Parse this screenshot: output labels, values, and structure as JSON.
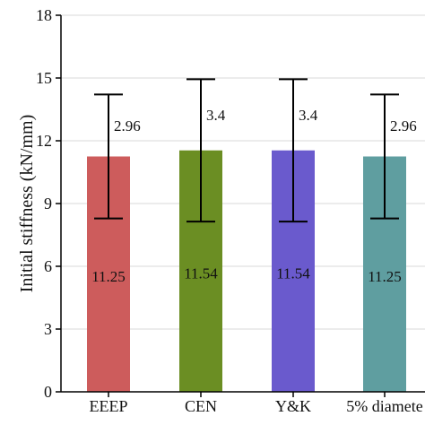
{
  "chart_data": {
    "type": "bar",
    "title": "",
    "xlabel": "",
    "ylabel": "Initial stiffness (kN/mm)",
    "ylim": [
      0,
      18
    ],
    "yticks": [
      0,
      3,
      6,
      9,
      12,
      15,
      18
    ],
    "grid": "horizontal",
    "categories": [
      "EEEP",
      "CEN",
      "Y&K",
      "5% diamete"
    ],
    "values": [
      11.25,
      11.54,
      11.54,
      11.25
    ],
    "value_labels": [
      "11.25",
      "11.54",
      "11.54",
      "11.25"
    ],
    "errors": [
      2.96,
      3.4,
      3.4,
      2.96
    ],
    "error_labels": [
      "2.96",
      "3.4",
      "3.4",
      "2.96"
    ],
    "colors": [
      "#cd5c5c",
      "#6b8e23",
      "#6a5acd",
      "#5f9ea0"
    ]
  }
}
